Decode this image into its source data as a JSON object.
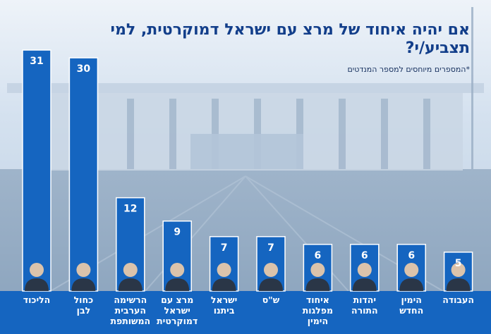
{
  "title": "אם יהיה איחוד של מרצ עם ישראל דמוקרטית, למי תצביע/י?",
  "subtitle": "*המספרים מיוחסים למספר המנדטים",
  "colors": {
    "bar": "#1565c0",
    "bar_border": "#ffffff",
    "label_band": "#1565c0",
    "label_text": "#ffffff",
    "value_text": "#ffffff",
    "title": "#123e8a"
  },
  "chart_data": {
    "type": "bar",
    "title": "אם יהיה איחוד של מרצ עם ישראל דמוקרטית, למי תצביע/י?",
    "subtitle": "*המספרים מיוחסים למספר המנדטים",
    "categories": [
      "הליכוד",
      "כחול לבן",
      "הרשימה הערבית המשותפת",
      "מרצ עם ישראל דמוקרטית",
      "ישראל ביתנו",
      "ש\"ס",
      "איחוד מפלגות הימין",
      "יהדות התורה",
      "הימין החדש",
      "העבודה"
    ],
    "label_lines": [
      [
        "הליכוד"
      ],
      [
        "כחול",
        "לבן"
      ],
      [
        "הרשימה",
        "הערבית",
        "המשותפת"
      ],
      [
        "מרצ עם",
        "ישראל",
        "דמוקרטית"
      ],
      [
        "ישראל",
        "ביתנו"
      ],
      [
        "ש\"ס"
      ],
      [
        "איחוד",
        "מפלגות",
        "הימין"
      ],
      [
        "יהדות",
        "התורה"
      ],
      [
        "הימין",
        "החדש"
      ],
      [
        "העבודה"
      ]
    ],
    "values": [
      31,
      30,
      12,
      9,
      7,
      7,
      6,
      6,
      6,
      5
    ],
    "xlabel": "",
    "ylabel": "",
    "ylim": [
      0,
      32
    ],
    "grid": false,
    "data_labels": true
  }
}
